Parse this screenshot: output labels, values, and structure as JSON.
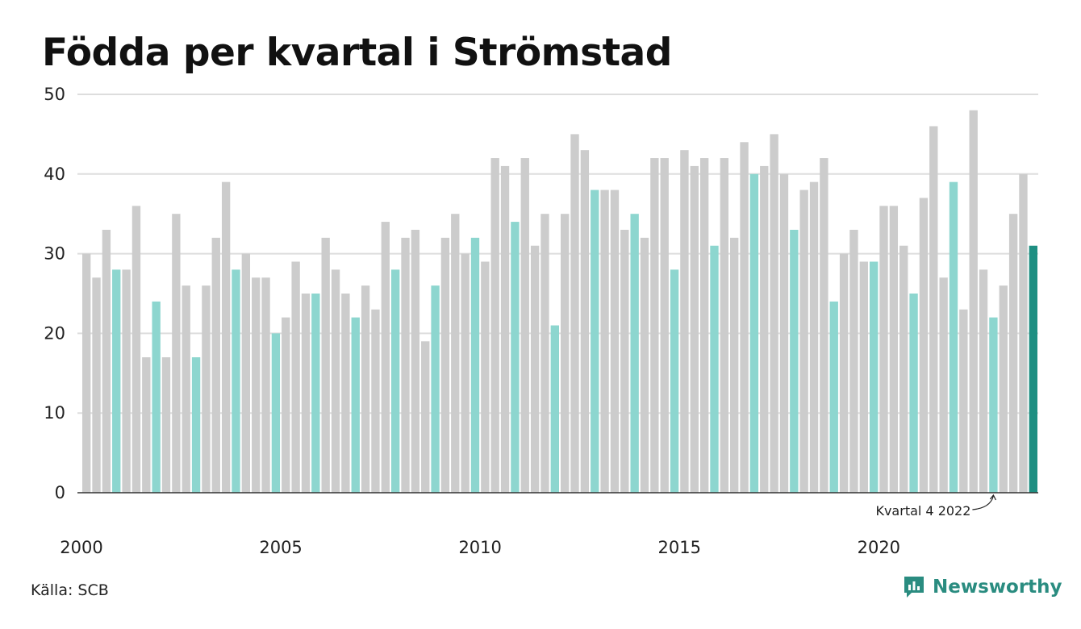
{
  "title": "Födda per kvartal i Strömstad",
  "source": "Källa: SCB",
  "brand": {
    "name": "Newsworthy",
    "icon": "newsworthy-logo-icon"
  },
  "colors": {
    "bar_default": "#cccccc",
    "bar_q4": "#8dd6cf",
    "bar_latest": "#1e8f82",
    "grid": "#dddddd",
    "axis": "#333333",
    "brand": "#2a8c80"
  },
  "chart_data": {
    "type": "bar",
    "title": "Födda per kvartal i Strömstad",
    "xlabel": "",
    "ylabel": "",
    "ylim": [
      0,
      50
    ],
    "yticks": [
      0,
      10,
      20,
      30,
      40,
      50
    ],
    "xticks": [
      "2000",
      "2005",
      "2010",
      "2015",
      "2020"
    ],
    "start_year": 2000,
    "grid": true,
    "annotation": {
      "text": "Kvartal 4 2022",
      "category": "2022 Q4"
    },
    "categories": [
      "2000 Q1",
      "2000 Q2",
      "2000 Q3",
      "2000 Q4",
      "2001 Q1",
      "2001 Q2",
      "2001 Q3",
      "2001 Q4",
      "2002 Q1",
      "2002 Q2",
      "2002 Q3",
      "2002 Q4",
      "2003 Q1",
      "2003 Q2",
      "2003 Q3",
      "2003 Q4",
      "2004 Q1",
      "2004 Q2",
      "2004 Q3",
      "2004 Q4",
      "2005 Q1",
      "2005 Q2",
      "2005 Q3",
      "2005 Q4",
      "2006 Q1",
      "2006 Q2",
      "2006 Q3",
      "2006 Q4",
      "2007 Q1",
      "2007 Q2",
      "2007 Q3",
      "2007 Q4",
      "2008 Q1",
      "2008 Q2",
      "2008 Q3",
      "2008 Q4",
      "2009 Q1",
      "2009 Q2",
      "2009 Q3",
      "2009 Q4",
      "2010 Q1",
      "2010 Q2",
      "2010 Q3",
      "2010 Q4",
      "2011 Q1",
      "2011 Q2",
      "2011 Q3",
      "2011 Q4",
      "2012 Q1",
      "2012 Q2",
      "2012 Q3",
      "2012 Q4",
      "2013 Q1",
      "2013 Q2",
      "2013 Q3",
      "2013 Q4",
      "2014 Q1",
      "2014 Q2",
      "2014 Q3",
      "2014 Q4",
      "2015 Q1",
      "2015 Q2",
      "2015 Q3",
      "2015 Q4",
      "2016 Q1",
      "2016 Q2",
      "2016 Q3",
      "2016 Q4",
      "2017 Q1",
      "2017 Q2",
      "2017 Q3",
      "2017 Q4",
      "2018 Q1",
      "2018 Q2",
      "2018 Q3",
      "2018 Q4",
      "2019 Q1",
      "2019 Q2",
      "2019 Q3",
      "2019 Q4",
      "2020 Q1",
      "2020 Q2",
      "2020 Q3",
      "2020 Q4",
      "2021 Q1",
      "2021 Q2",
      "2021 Q3",
      "2021 Q4",
      "2022 Q1",
      "2022 Q2",
      "2022 Q3",
      "2022 Q4",
      "2023 Q1",
      "2023 Q2",
      "2023 Q3",
      "2023 Q4"
    ],
    "values": [
      30,
      27,
      33,
      28,
      28,
      36,
      17,
      24,
      17,
      35,
      26,
      17,
      26,
      32,
      39,
      28,
      30,
      27,
      27,
      20,
      22,
      29,
      25,
      25,
      32,
      28,
      25,
      22,
      26,
      23,
      34,
      28,
      32,
      33,
      19,
      26,
      32,
      35,
      30,
      32,
      29,
      42,
      41,
      34,
      42,
      31,
      35,
      21,
      35,
      45,
      43,
      38,
      38,
      38,
      33,
      35,
      32,
      42,
      42,
      28,
      43,
      41,
      42,
      31,
      42,
      32,
      44,
      40,
      41,
      45,
      40,
      33,
      38,
      39,
      42,
      24,
      30,
      33,
      29,
      29,
      36,
      36,
      31,
      25,
      37,
      46,
      27,
      39,
      23,
      48,
      28,
      22,
      26,
      35,
      40,
      31
    ]
  }
}
